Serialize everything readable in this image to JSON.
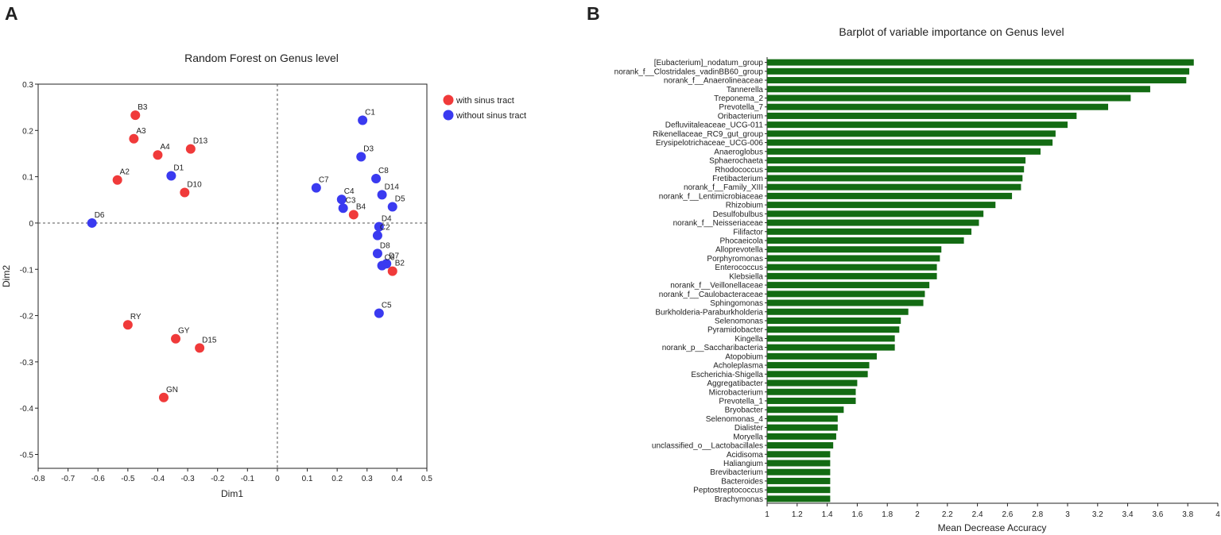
{
  "panels": {
    "a": "A",
    "b": "B"
  },
  "chart_data": [
    {
      "type": "scatter",
      "title": "Random Forest on Genus level",
      "xlabel": "Dim1",
      "ylabel": "Dim2",
      "xlim": [
        -0.8,
        0.5
      ],
      "ylim": [
        -0.53,
        0.3
      ],
      "xticks": [
        -0.8,
        -0.7,
        -0.6,
        -0.5,
        -0.4,
        -0.3,
        -0.2,
        -0.1,
        0,
        0.1,
        0.2,
        0.3,
        0.4,
        0.5
      ],
      "yticks": [
        0.3,
        0.2,
        0.1,
        0,
        -0.1,
        -0.2,
        -0.3,
        -0.4,
        -0.5
      ],
      "legend_position": "top-right",
      "reference_lines": {
        "x": 0,
        "y": 0
      },
      "colors": {
        "with": "#f03a3a",
        "without": "#3a3af0"
      },
      "series": [
        {
          "name": "with sinus tract",
          "color": "#f03a3a",
          "points": [
            {
              "label": "B3",
              "x": -0.475,
              "y": 0.233
            },
            {
              "label": "A3",
              "x": -0.48,
              "y": 0.182
            },
            {
              "label": "A4",
              "x": -0.4,
              "y": 0.147
            },
            {
              "label": "D13",
              "x": -0.29,
              "y": 0.16
            },
            {
              "label": "A2",
              "x": -0.535,
              "y": 0.093
            },
            {
              "label": "D10",
              "x": -0.31,
              "y": 0.066
            },
            {
              "label": "B4",
              "x": 0.255,
              "y": 0.018
            },
            {
              "label": "B2",
              "x": 0.385,
              "y": -0.104
            },
            {
              "label": "RY",
              "x": -0.5,
              "y": -0.22
            },
            {
              "label": "GY",
              "x": -0.34,
              "y": -0.25
            },
            {
              "label": "D15",
              "x": -0.26,
              "y": -0.27
            },
            {
              "label": "GN",
              "x": -0.38,
              "y": -0.377
            }
          ]
        },
        {
          "name": "without sinus tract",
          "color": "#3a3af0",
          "points": [
            {
              "label": "C1",
              "x": 0.285,
              "y": 0.222
            },
            {
              "label": "D3",
              "x": 0.28,
              "y": 0.143
            },
            {
              "label": "D1",
              "x": -0.355,
              "y": 0.102
            },
            {
              "label": "C8",
              "x": 0.33,
              "y": 0.096
            },
            {
              "label": "C7",
              "x": 0.13,
              "y": 0.076
            },
            {
              "label": "D14",
              "x": 0.35,
              "y": 0.061
            },
            {
              "label": "C4",
              "x": 0.215,
              "y": 0.051
            },
            {
              "label": "C3",
              "x": 0.22,
              "y": 0.032
            },
            {
              "label": "D5",
              "x": 0.385,
              "y": 0.035
            },
            {
              "label": "D6",
              "x": -0.62,
              "y": 0.0
            },
            {
              "label": "D4",
              "x": 0.34,
              "y": -0.008
            },
            {
              "label": "C2",
              "x": 0.335,
              "y": -0.027
            },
            {
              "label": "D8",
              "x": 0.335,
              "y": -0.066
            },
            {
              "label": "D7",
              "x": 0.365,
              "y": -0.088
            },
            {
              "label": "C6",
              "x": 0.35,
              "y": -0.092
            },
            {
              "label": "C5",
              "x": 0.34,
              "y": -0.195
            }
          ]
        }
      ]
    },
    {
      "type": "bar",
      "orientation": "horizontal",
      "title": "Barplot of variable importance on Genus level",
      "xlabel": "Mean Decrease Accuracy",
      "ylabel": "",
      "xlim": [
        1,
        4
      ],
      "xticks": [
        1,
        1.2,
        1.4,
        1.6,
        1.8,
        2,
        2.2,
        2.4,
        2.6,
        2.8,
        3,
        3.2,
        3.4,
        3.6,
        3.8,
        4
      ],
      "bar_color": "#136b13",
      "categories": [
        "[Eubacterium]_nodatum_group",
        "norank_f__Clostridales_vadinBB60_group",
        "norank_f__Anaerolineaceae",
        "Tannerella",
        "Treponema_2",
        "Prevotella_7",
        "Oribacterium",
        "Defluviitaleaceae_UCG-011",
        "Rikenellaceae_RC9_gut_group",
        "Erysipelotrichaceae_UCG-006",
        "Anaeroglobus",
        "Sphaerochaeta",
        "Rhodococcus",
        "Fretibacterium",
        "norank_f__Family_XIII",
        "norank_f__Lentimicrobiaceae",
        "Rhizobium",
        "Desulfobulbus",
        "norank_f__Neisseriaceae",
        "Filifactor",
        "Phocaeicola",
        "Alloprevotella",
        "Porphyromonas",
        "Enterococcus",
        "Klebsiella",
        "norank_f__Veillonellaceae",
        "norank_f__Caulobacteraceae",
        "Sphingomonas",
        "Burkholderia-Paraburkholderia",
        "Selenomonas",
        "Pyramidobacter",
        "Kingella",
        "norank_p__Saccharibacteria",
        "Atopobium",
        "Acholeplasma",
        "Escherichia-Shigella",
        "Aggregatibacter",
        "Microbacterium",
        "Prevotella_1",
        "Bryobacter",
        "Selenomonas_4",
        "Dialister",
        "Moryella",
        "unclassified_o__Lactobacillales",
        "Acidisoma",
        "Haliangium",
        "Brevibacterium",
        "Bacteroides",
        "Peptostreptococcus",
        "Brachymonas"
      ],
      "values": [
        3.84,
        3.81,
        3.79,
        3.55,
        3.42,
        3.27,
        3.06,
        3.0,
        2.92,
        2.9,
        2.82,
        2.72,
        2.71,
        2.7,
        2.69,
        2.63,
        2.52,
        2.44,
        2.41,
        2.36,
        2.31,
        2.16,
        2.15,
        2.13,
        2.13,
        2.08,
        2.05,
        2.04,
        1.94,
        1.89,
        1.88,
        1.85,
        1.85,
        1.73,
        1.68,
        1.67,
        1.6,
        1.59,
        1.59,
        1.51,
        1.47,
        1.47,
        1.46,
        1.44,
        1.42,
        1.42,
        1.42,
        1.42,
        1.42,
        1.42
      ]
    }
  ]
}
